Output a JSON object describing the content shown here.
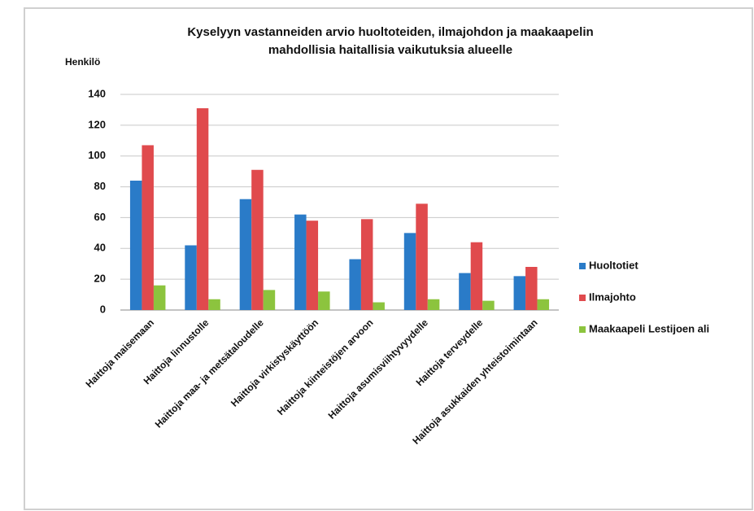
{
  "chart_data": {
    "type": "bar",
    "title": [
      "Kyselyyn vastanneiden arvio huoltoteiden, ilmajohdon ja maakaapelin",
      "mahdollisia haitallisia vaikutuksia alueelle"
    ],
    "y_label": "Henkilö",
    "categories": [
      "Haittoja maisemaan",
      "Haittoja linnustolle",
      "Haittoja maa- ja metsätaloudelle",
      "Haittoja virkistyskäyttöön",
      "Haittoja kiinteistöjen arvoon",
      "Haittoja asumisviihtyvyydelle",
      "Haittoja terveydelle",
      "Haittoja asukkaiden yhteistoimintaan"
    ],
    "series": [
      {
        "name": "Huoltotiet",
        "color": "#2a7bc8",
        "values": [
          84,
          42,
          72,
          62,
          33,
          50,
          24,
          22
        ]
      },
      {
        "name": "Ilmajohto",
        "color": "#e04a4d",
        "values": [
          107,
          131,
          91,
          58,
          59,
          69,
          44,
          28
        ]
      },
      {
        "name": "Maakaapeli Lestijoen ali",
        "color": "#8cc43e",
        "values": [
          16,
          7,
          13,
          12,
          5,
          7,
          6,
          7
        ]
      }
    ],
    "ylim": [
      0,
      140
    ],
    "yticks": [
      0,
      20,
      40,
      60,
      80,
      100,
      120,
      140
    ],
    "grid": true,
    "legend": "right"
  }
}
